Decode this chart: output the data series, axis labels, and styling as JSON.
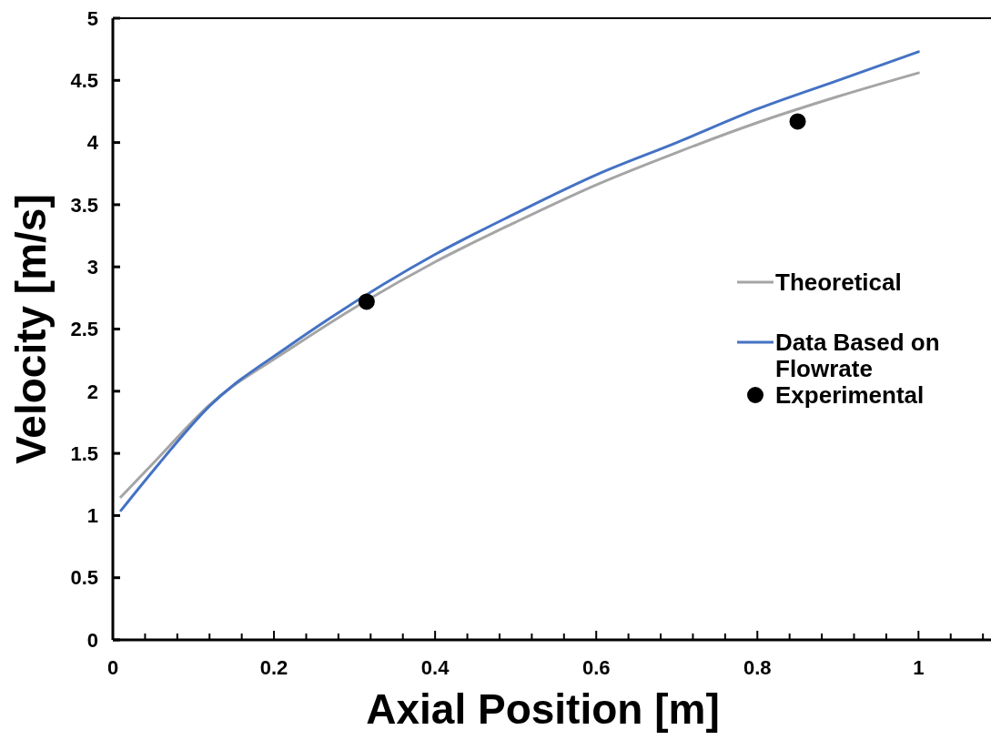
{
  "chart_data": {
    "type": "line",
    "xlabel": "Axial Position [m]",
    "ylabel": "Velocity [m/s]",
    "xlim": [
      0,
      1.09
    ],
    "xticks": [
      0,
      {
        "value": 0.04,
        "label": null
      },
      {
        "value": 0.08,
        "label": null
      },
      {
        "value": 0.12,
        "label": null
      },
      {
        "value": 0.16,
        "label": null
      },
      0.2,
      {
        "value": 0.24,
        "label": null
      },
      {
        "value": 0.28,
        "label": null
      },
      {
        "value": 0.32,
        "label": null
      },
      {
        "value": 0.36,
        "label": null
      },
      0.4,
      {
        "value": 0.44,
        "label": null
      },
      {
        "value": 0.48,
        "label": null
      },
      {
        "value": 0.52,
        "label": null
      },
      {
        "value": 0.56,
        "label": null
      },
      0.6,
      {
        "value": 0.64,
        "label": null
      },
      {
        "value": 0.68,
        "label": null
      },
      {
        "value": 0.72,
        "label": null
      },
      {
        "value": 0.76,
        "label": null
      },
      0.8,
      {
        "value": 0.84,
        "label": null
      },
      {
        "value": 0.88,
        "label": null
      },
      {
        "value": 0.92,
        "label": null
      },
      {
        "value": 0.96,
        "label": null
      },
      1,
      {
        "value": 1.04,
        "label": null
      },
      {
        "value": 1.08,
        "label": null
      }
    ],
    "ylim": [
      0,
      5
    ],
    "yticks": [
      0,
      0.5,
      1,
      1.5,
      2,
      2.5,
      3,
      3.5,
      4,
      4.5,
      5
    ],
    "grid": false,
    "legend": "right",
    "marker": "none",
    "line_style": "solid",
    "series": [
      {
        "name": "Theoretical",
        "color": "#a5a5a5",
        "x": [
          0.01,
          0.05,
          0.12,
          0.22,
          0.31,
          0.4,
          0.5,
          0.6,
          0.7,
          0.8,
          0.9,
          1
        ],
        "values": [
          1.15,
          1.42,
          1.89,
          2.34,
          2.71,
          3.04,
          3.36,
          3.66,
          3.92,
          4.16,
          4.37,
          4.56
        ]
      },
      {
        "name": "Data Based on Flowrate",
        "color": "#4472c4",
        "x": [
          0.01,
          0.05,
          0.12,
          0.22,
          0.27,
          0.4,
          0.5,
          0.6,
          0.7,
          0.8,
          0.9,
          1
        ],
        "values": [
          1.04,
          1.36,
          1.88,
          2.37,
          2.59,
          3.1,
          3.43,
          3.74,
          4.0,
          4.27,
          4.5,
          4.73
        ]
      },
      {
        "name": "Experimental",
        "type": "scatter",
        "color": "#000000",
        "marker": "circle",
        "x": [
          0.315,
          0.85
        ],
        "values": [
          2.72,
          4.17
        ]
      }
    ]
  }
}
